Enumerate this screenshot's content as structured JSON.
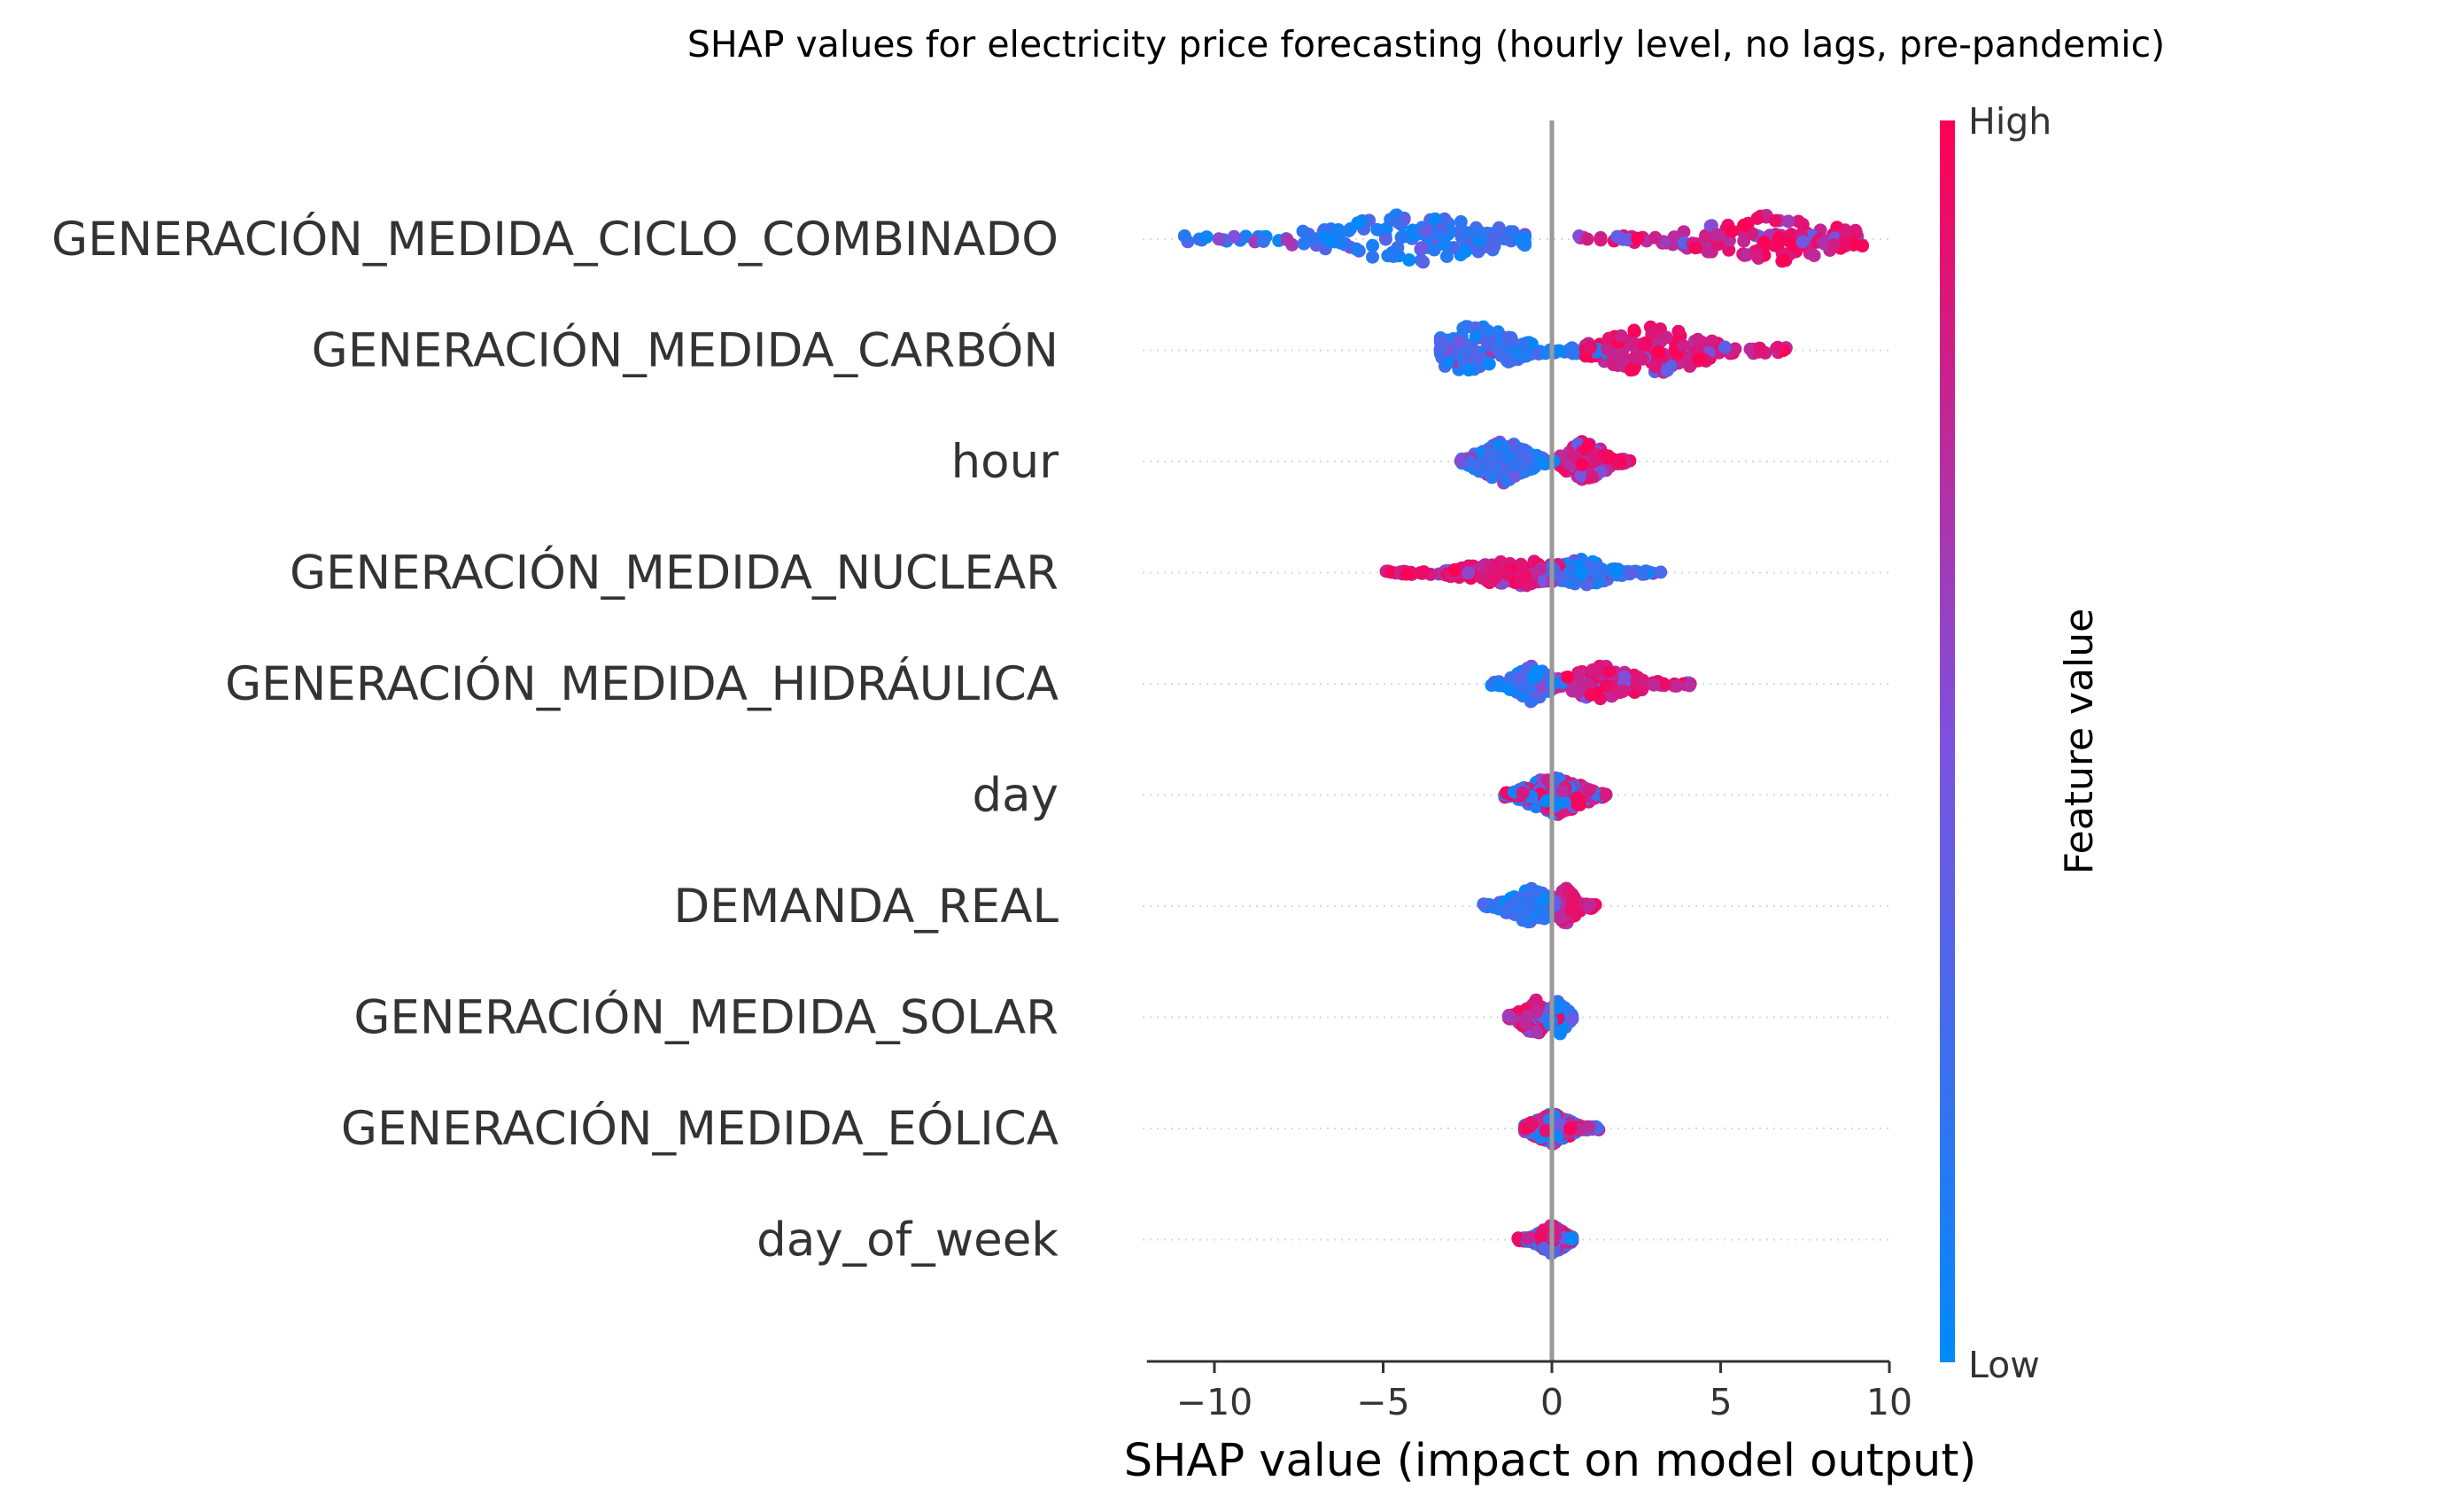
{
  "chart_data": {
    "type": "scatter",
    "subtype": "shap-beeswarm",
    "title": "SHAP values for electricity price forecasting (hourly level, no lags, pre-pandemic)",
    "xlabel": "SHAP value (impact on model output)",
    "xlim": [
      -12,
      10
    ],
    "xticks": [
      {
        "value": -10,
        "label": "−10"
      },
      {
        "value": -5,
        "label": "−5"
      },
      {
        "value": 0,
        "label": "0"
      },
      {
        "value": 5,
        "label": "5"
      },
      {
        "value": 10,
        "label": "10"
      }
    ],
    "colorbar": {
      "title": "Feature value",
      "high_label": "High",
      "low_label": "Low",
      "low_color": "#008bfb",
      "high_color": "#ff0052"
    },
    "features": [
      {
        "name": "GENERACIÓN_MEDIDA_CICLO_COMBINADO",
        "low_range": [
          -11,
          -0.8
        ],
        "high_range": [
          0.8,
          9.2
        ],
        "low_dense": -4.2,
        "high_dense": 6.5,
        "spread": 1.0
      },
      {
        "name": "GENERACIÓN_MEDIDA_CARBÓN",
        "low_range": [
          -3.3,
          1.8
        ],
        "high_range": [
          1.0,
          7.0
        ],
        "low_dense": -2.3,
        "high_dense": 3.0,
        "spread": 1.0
      },
      {
        "name": "hour",
        "low_range": [
          -2.7,
          0.2
        ],
        "high_range": [
          0.2,
          2.4
        ],
        "low_dense": -1.4,
        "high_dense": 1.0,
        "spread": 0.85
      },
      {
        "name": "GENERACIÓN_MEDIDA_NUCLEAR",
        "low_range": [
          0.0,
          3.3
        ],
        "high_range": [
          -5.0,
          1.0
        ],
        "low_dense": 0.9,
        "high_dense": -1.0,
        "spread": 0.55
      },
      {
        "name": "GENERACIÓN_MEDIDA_HIDRÁULICA",
        "low_range": [
          -1.8,
          0.3
        ],
        "high_range": [
          0.1,
          4.1
        ],
        "low_dense": -0.6,
        "high_dense": 1.5,
        "spread": 0.7
      },
      {
        "name": "day",
        "low_range": [
          -1.4,
          1.6
        ],
        "high_range": [
          -1.4,
          1.6
        ],
        "low_dense": 0.0,
        "high_dense": 0.2,
        "spread": 0.75
      },
      {
        "name": "DEMANDA_REAL",
        "low_range": [
          -2.1,
          0.5
        ],
        "high_range": [
          0.0,
          1.3
        ],
        "low_dense": -0.6,
        "high_dense": 0.4,
        "spread": 0.7
      },
      {
        "name": "GENERACIÓN_MEDIDA_SOLAR",
        "low_range": [
          -0.4,
          0.6
        ],
        "high_range": [
          -1.3,
          0.2
        ],
        "low_dense": 0.2,
        "high_dense": -0.5,
        "spread": 0.7
      },
      {
        "name": "GENERACIÓN_MEDIDA_EÓLICA",
        "low_range": [
          -0.8,
          1.4
        ],
        "high_range": [
          -0.8,
          1.4
        ],
        "low_dense": 0.0,
        "high_dense": 0.0,
        "spread": 0.6
      },
      {
        "name": "day_of_week",
        "low_range": [
          -1.0,
          0.6
        ],
        "high_range": [
          -1.0,
          0.6
        ],
        "low_dense": 0.0,
        "high_dense": 0.0,
        "spread": 0.55
      }
    ]
  }
}
